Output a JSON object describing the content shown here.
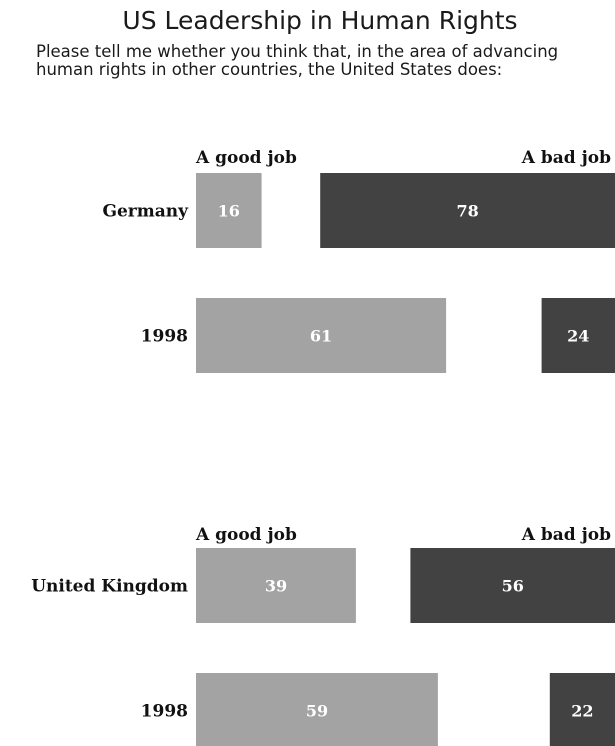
{
  "title": "US Leadership in Human Rights",
  "subtitle": "Please tell me whether you think that, in the area of advancing human rights in other countries, the United States does:",
  "colors": {
    "good": "#a3a3a3",
    "bad": "#424242",
    "text": "#111111",
    "value_text": "#ffffff"
  },
  "chart_data": [
    {
      "type": "bar",
      "orientation": "horizontal",
      "series_headers": [
        "A good job",
        "A bad job"
      ],
      "categories": [
        "Germany",
        "1998"
      ],
      "series": [
        {
          "name": "A good job",
          "values": [
            16,
            61
          ]
        },
        {
          "name": "A bad job",
          "values": [
            78,
            24
          ]
        }
      ]
    },
    {
      "type": "bar",
      "orientation": "horizontal",
      "series_headers": [
        "A good job",
        "A bad job"
      ],
      "categories": [
        "United Kingdom",
        "1998"
      ],
      "series": [
        {
          "name": "A good job",
          "values": [
            39,
            59
          ]
        },
        {
          "name": "A bad job",
          "values": [
            56,
            22
          ]
        }
      ]
    }
  ]
}
